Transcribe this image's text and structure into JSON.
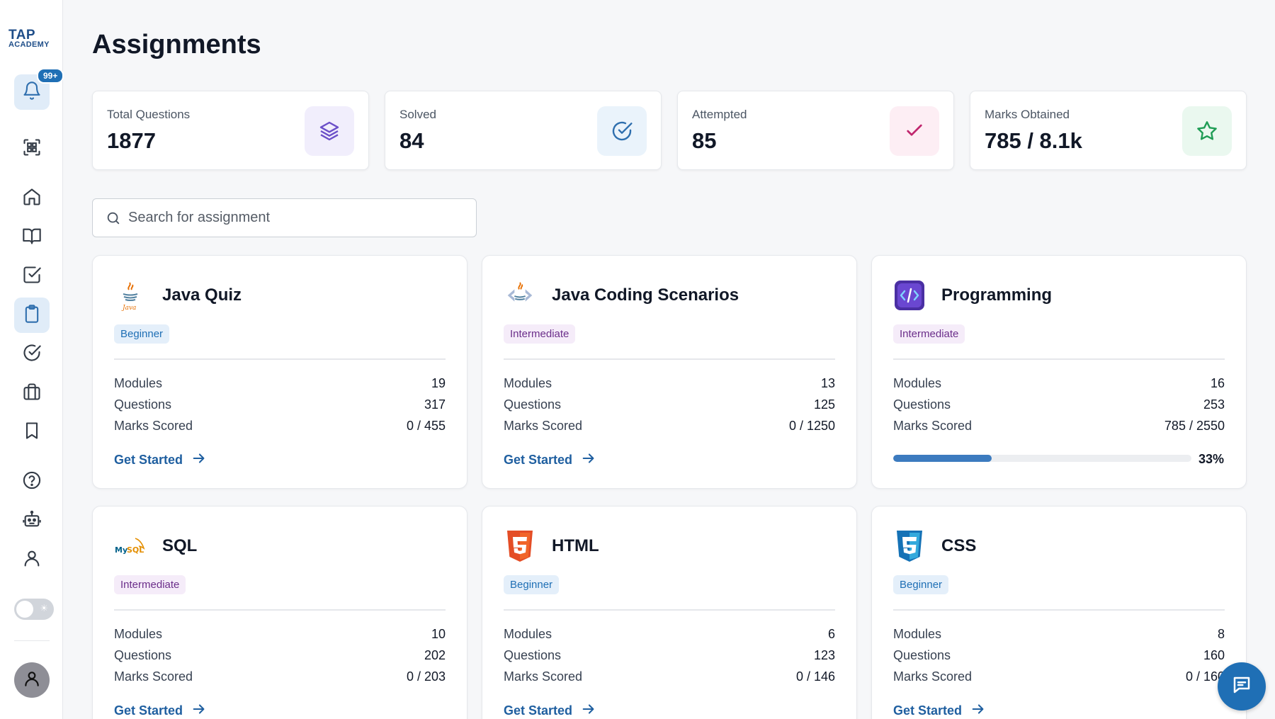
{
  "sidebar": {
    "logo_line1": "TAP",
    "logo_line2": "ACADEMY",
    "notification_badge": "99+",
    "items": [
      {
        "name": "notifications",
        "icon": "bell-icon"
      },
      {
        "name": "qr-scanner",
        "icon": "qr-code-icon"
      },
      {
        "name": "home",
        "icon": "home-icon"
      },
      {
        "name": "courses",
        "icon": "book-open-icon"
      },
      {
        "name": "tasks",
        "icon": "checkbox-icon"
      },
      {
        "name": "assignments",
        "icon": "clipboard-icon",
        "active": true
      },
      {
        "name": "completed",
        "icon": "check-circle-icon"
      },
      {
        "name": "jobs",
        "icon": "briefcase-icon"
      },
      {
        "name": "bookmarks",
        "icon": "bookmark-icon"
      },
      {
        "name": "help",
        "icon": "question-circle-icon"
      },
      {
        "name": "bot",
        "icon": "robot-icon"
      },
      {
        "name": "profile",
        "icon": "user-icon"
      }
    ]
  },
  "page": {
    "title": "Assignments"
  },
  "stats": [
    {
      "label": "Total Questions",
      "value": "1877",
      "icon": "layers-icon",
      "color": "#6b4fc8",
      "bg": "#f1eefc"
    },
    {
      "label": "Solved",
      "value": "84",
      "icon": "check-circle-icon",
      "color": "#2f6fae",
      "bg": "#eaf3fb"
    },
    {
      "label": "Attempted",
      "value": "85",
      "icon": "check-icon",
      "color": "#c0266d",
      "bg": "#fdeef4"
    },
    {
      "label": "Marks Obtained",
      "value": "785 / 8.1k",
      "icon": "star-icon",
      "color": "#1f9d55",
      "bg": "#eaf8ef"
    }
  ],
  "search": {
    "placeholder": "Search for assignment",
    "value": ""
  },
  "labels": {
    "modules": "Modules",
    "questions": "Questions",
    "marks": "Marks Scored",
    "cta": "Get Started"
  },
  "cards": [
    {
      "title": "Java Quiz",
      "level": "Beginner",
      "logo": "java-logo-icon",
      "modules": "19",
      "questions": "317",
      "marks": "0 / 455"
    },
    {
      "title": "Java Coding Scenarios",
      "level": "Intermediate",
      "logo": "java-coding-logo-icon",
      "modules": "13",
      "questions": "125",
      "marks": "0 / 1250"
    },
    {
      "title": "Programming",
      "level": "Intermediate",
      "logo": "programming-logo-icon",
      "modules": "16",
      "questions": "253",
      "marks": "785 / 2550",
      "progress": 33,
      "progress_text": "33%"
    },
    {
      "title": "SQL",
      "level": "Intermediate",
      "logo": "mysql-logo-icon",
      "modules": "10",
      "questions": "202",
      "marks": "0 / 203"
    },
    {
      "title": "HTML",
      "level": "Beginner",
      "logo": "html5-logo-icon",
      "modules": "6",
      "questions": "123",
      "marks": "0 / 146"
    },
    {
      "title": "CSS",
      "level": "Beginner",
      "logo": "css3-logo-icon",
      "modules": "8",
      "questions": "160",
      "marks": "0 / 160"
    }
  ],
  "colors": {
    "accent": "#1f6fb5",
    "link": "#1f5fa0",
    "beginner_bg": "#e4effa",
    "intermediate_bg": "#f5ecf9"
  }
}
